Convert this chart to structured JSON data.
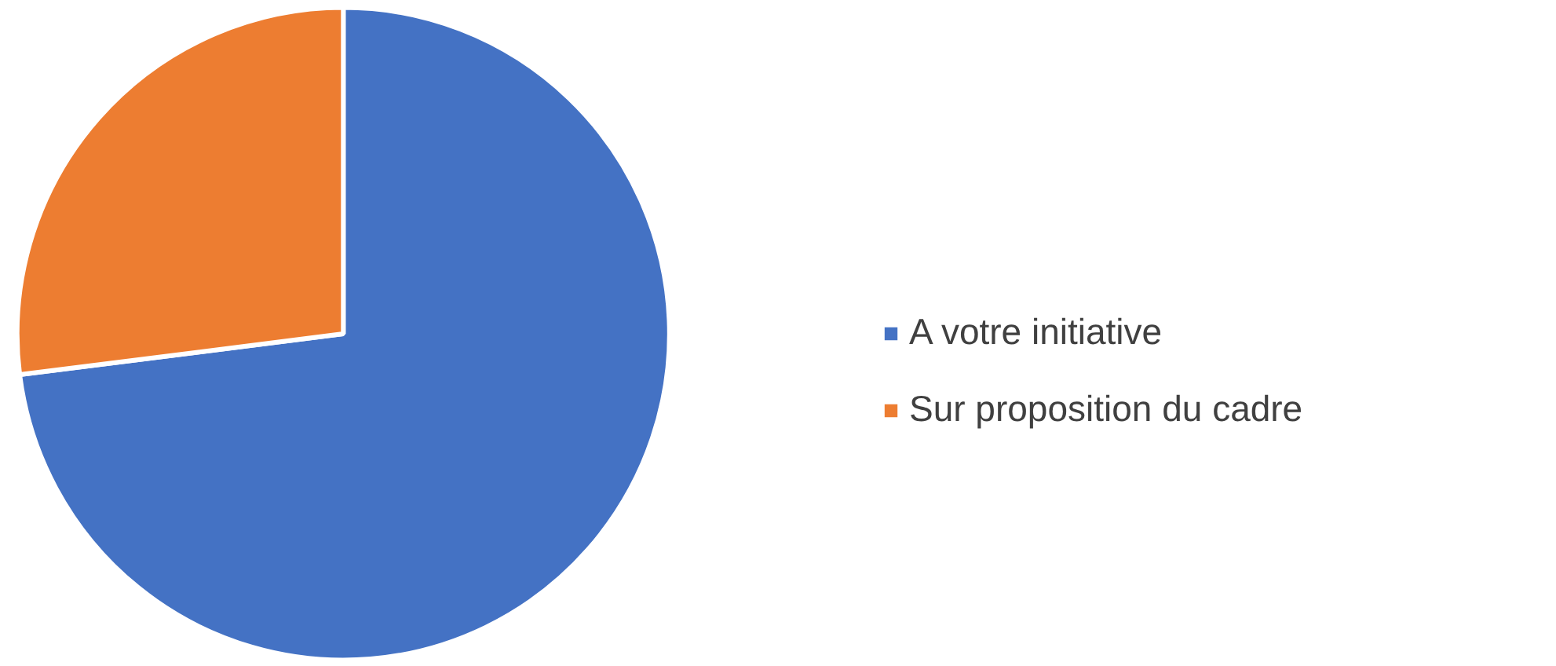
{
  "chart_data": {
    "type": "pie",
    "categories": [
      "A votre initiative",
      "Sur proposition du cadre"
    ],
    "values": [
      73,
      27
    ],
    "colors": [
      "#4472c4",
      "#ed7d31"
    ],
    "legend": "right"
  }
}
